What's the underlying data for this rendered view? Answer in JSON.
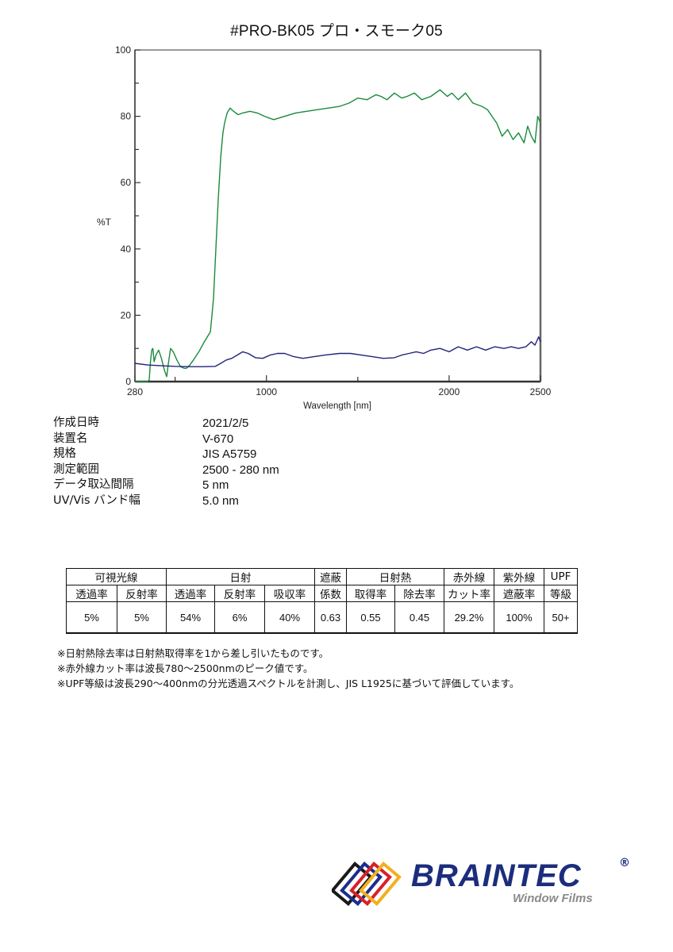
{
  "header": {
    "title": "#PRO-BK05  プロ・スモーク05"
  },
  "chart_data": {
    "type": "line",
    "title": "#PRO-BK05  プロ・スモーク05",
    "xlabel": "Wavelength [nm]",
    "ylabel": "%T",
    "xlim": [
      280,
      2500
    ],
    "ylim": [
      0,
      100
    ],
    "xticks": [
      280,
      1000,
      2000,
      2500
    ],
    "xminor": [
      500,
      1500
    ],
    "yticks": [
      0,
      20,
      40,
      60,
      80,
      100
    ],
    "yminor": [
      10,
      30,
      50,
      70,
      90
    ],
    "grid": false,
    "series": [
      {
        "name": "transmittance-green",
        "color": "#1a8a3c",
        "x": [
          280,
          340,
          350,
          358,
          365,
          372,
          378,
          385,
          395,
          410,
          425,
          441,
          454,
          462,
          475,
          490,
          510,
          530,
          550,
          562,
          580,
          600,
          630,
          660,
          693,
          710,
          725,
          736,
          750,
          762,
          771,
          785,
          801,
          820,
          845,
          870,
          910,
          950,
          990,
          1040,
          1100,
          1160,
          1220,
          1280,
          1340,
          1400,
          1453,
          1500,
          1550,
          1600,
          1627,
          1660,
          1700,
          1740,
          1770,
          1810,
          1850,
          1900,
          1950,
          1990,
          2015,
          2050,
          2090,
          2130,
          2180,
          2210,
          2235,
          2260,
          2290,
          2320,
          2350,
          2380,
          2410,
          2430,
          2450,
          2470,
          2485,
          2500
        ],
        "y": [
          0,
          0,
          0,
          0.5,
          6,
          9.5,
          10,
          6,
          8,
          9.5,
          7,
          3.5,
          1.5,
          5,
          10,
          9,
          6.5,
          4.5,
          4,
          4,
          5,
          6.5,
          9,
          12,
          15,
          25,
          42,
          55,
          68,
          75,
          78,
          81,
          82.5,
          81.5,
          80.5,
          81,
          81.5,
          81,
          80,
          79,
          80,
          81,
          81.5,
          82,
          82.5,
          83,
          84,
          85.5,
          85,
          86.5,
          86,
          85,
          87,
          85.5,
          86,
          87,
          85,
          86,
          88,
          86,
          87,
          85,
          87,
          84,
          83,
          82,
          80,
          78,
          74,
          76,
          73,
          75,
          72,
          77,
          74,
          72,
          80,
          78
        ]
      },
      {
        "name": "reflectance-navy",
        "color": "#22227a",
        "x": [
          280,
          350,
          420,
          500,
          580,
          650,
          720,
          750,
          780,
          810,
          840,
          870,
          900,
          940,
          980,
          1020,
          1060,
          1100,
          1150,
          1200,
          1260,
          1320,
          1400,
          1460,
          1520,
          1580,
          1640,
          1700,
          1740,
          1780,
          1820,
          1860,
          1900,
          1950,
          2000,
          2050,
          2100,
          2150,
          2200,
          2250,
          2300,
          2340,
          2380,
          2420,
          2450,
          2470,
          2490,
          2500
        ],
        "y": [
          5.5,
          5,
          4.8,
          4.6,
          4.5,
          4.5,
          4.6,
          5.5,
          6.5,
          7,
          8,
          9,
          8.5,
          7.2,
          7,
          8,
          8.5,
          8.5,
          7.5,
          7,
          7.5,
          8,
          8.5,
          8.5,
          8,
          7.5,
          7,
          7.2,
          8,
          8.5,
          9,
          8.5,
          9.5,
          10,
          9,
          10.5,
          9.5,
          10.5,
          9.5,
          10.5,
          10,
          10.5,
          10,
          10.5,
          12,
          11,
          13.5,
          12
        ]
      }
    ]
  },
  "info": {
    "rows": [
      {
        "label": "作成日時",
        "value": "2021/2/5"
      },
      {
        "label": "装置名",
        "value": "V-670"
      },
      {
        "label": "規格",
        "value": "JIS A5759"
      },
      {
        "label": "測定範囲",
        "value": "2500 - 280 nm"
      },
      {
        "label": "データ取込間隔",
        "value": "5 nm"
      },
      {
        "label": "UV/Vis バンド幅",
        "value": "5.0 nm"
      }
    ]
  },
  "spec_table": {
    "groups": {
      "visible": "可視光線",
      "solar": "日射",
      "shading_1": "遮蔽",
      "shading_2": "係数",
      "solar_heat": "日射熱",
      "ir_1": "赤外線",
      "ir_2": "カット率",
      "uv_1": "紫外線",
      "uv_2": "遮蔽率",
      "upf_1": "UPF",
      "upf_2": "等級"
    },
    "subheaders": {
      "vis_trans": "透過率",
      "vis_refl": "反射率",
      "sol_trans": "透過率",
      "sol_refl": "反射率",
      "sol_abs": "吸収率",
      "heat_gain": "取得率",
      "heat_reject": "除去率"
    },
    "values": {
      "vis_trans": "5%",
      "vis_refl": "5%",
      "sol_trans": "54%",
      "sol_refl": "6%",
      "sol_abs": "40%",
      "shading": "0.63",
      "heat_gain": "0.55",
      "heat_reject": "0.45",
      "ir_cut": "29.2%",
      "uv_block": "100%",
      "upf": "50+"
    }
  },
  "notes": [
    "※日射熱除去率は日射熱取得率を1から差し引いたものです。",
    "※赤外線カット率は波長780～2500nmのピーク値です。",
    "※UPF等級は波長290～400nmの分光透過スペクトルを計測し、JIS L1925に基づいて評価しています。"
  ],
  "logo": {
    "name": "BRAINTEC",
    "registered": "®",
    "subtitle": "Window Films",
    "frame_colors": [
      "#1a1a1a",
      "#1c2d8c",
      "#d8202a",
      "#f0b020"
    ]
  }
}
